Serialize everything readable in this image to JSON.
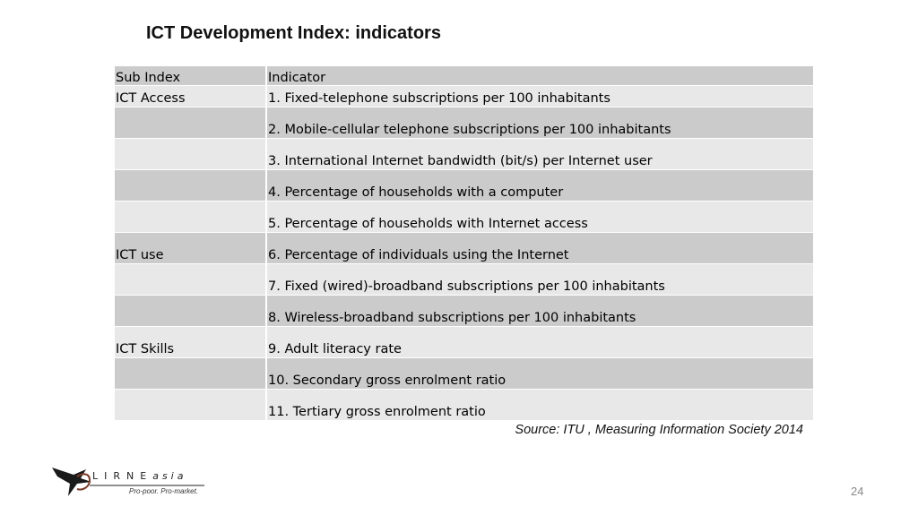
{
  "slide": {
    "title": "ICT Development Index: indicators",
    "source": "Source: ITU , Measuring Information Society 2014",
    "page_number": "24"
  },
  "table": {
    "headers": [
      "Sub Index",
      "Indicator"
    ],
    "rows": [
      {
        "sub_index": "ICT Access",
        "indicator": "1. Fixed-telephone subscriptions per 100 inhabitants"
      },
      {
        "sub_index": "",
        "indicator": "2. Mobile-cellular telephone subscriptions per 100 inhabitants"
      },
      {
        "sub_index": "",
        "indicator": "3. International Internet bandwidth (bit/s) per Internet user"
      },
      {
        "sub_index": "",
        "indicator": "4. Percentage of households with a computer"
      },
      {
        "sub_index": "",
        "indicator": "5. Percentage of households with Internet access"
      },
      {
        "sub_index": "ICT use",
        "indicator": "6. Percentage of individuals using the Internet"
      },
      {
        "sub_index": "",
        "indicator": "7. Fixed (wired)-broadband subscriptions per 100 inhabitants"
      },
      {
        "sub_index": "",
        "indicator": "8. Wireless-broadband subscriptions per 100 inhabitants"
      },
      {
        "sub_index": "ICT Skills",
        "indicator": "9. Adult literacy rate"
      },
      {
        "sub_index": "",
        "indicator": "10. Secondary gross enrolment ratio"
      },
      {
        "sub_index": "",
        "indicator": "11. Tertiary gross enrolment ratio"
      }
    ]
  },
  "logo": {
    "name_main": "LIRNE",
    "name_suffix": "asia",
    "tagline": "Pro-poor. Pro-market."
  },
  "colors": {
    "row_dark": "#cbcbcb",
    "row_light": "#e8e8e8"
  }
}
